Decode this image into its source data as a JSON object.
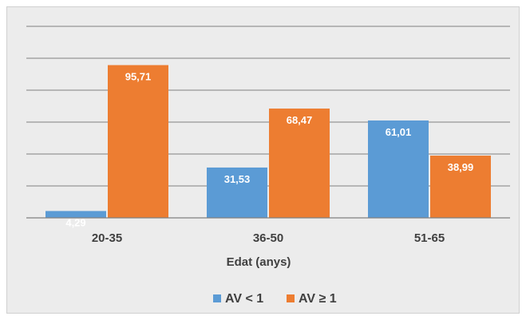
{
  "chart_data": {
    "type": "bar",
    "title": "",
    "xlabel": "Edat (anys)",
    "ylabel": "",
    "categories": [
      "20-35",
      "36-50",
      "51-65"
    ],
    "series": [
      {
        "name": "AV < 1",
        "values": [
          4.29,
          31.53,
          61.01
        ],
        "labels": [
          "4,29",
          "31,53",
          "61,01"
        ],
        "color": "#5b9bd5"
      },
      {
        "name": "AV ≥ 1",
        "values": [
          95.71,
          68.47,
          38.99
        ],
        "labels": [
          "95,71",
          "68,47",
          "38,99"
        ],
        "color": "#ed7d31"
      }
    ],
    "ylim": [
      0,
      120
    ],
    "gridlines": true,
    "y_tick_labels_shown": false,
    "legend_position": "bottom",
    "background": "#ececec",
    "gridline_color": "#808080"
  }
}
